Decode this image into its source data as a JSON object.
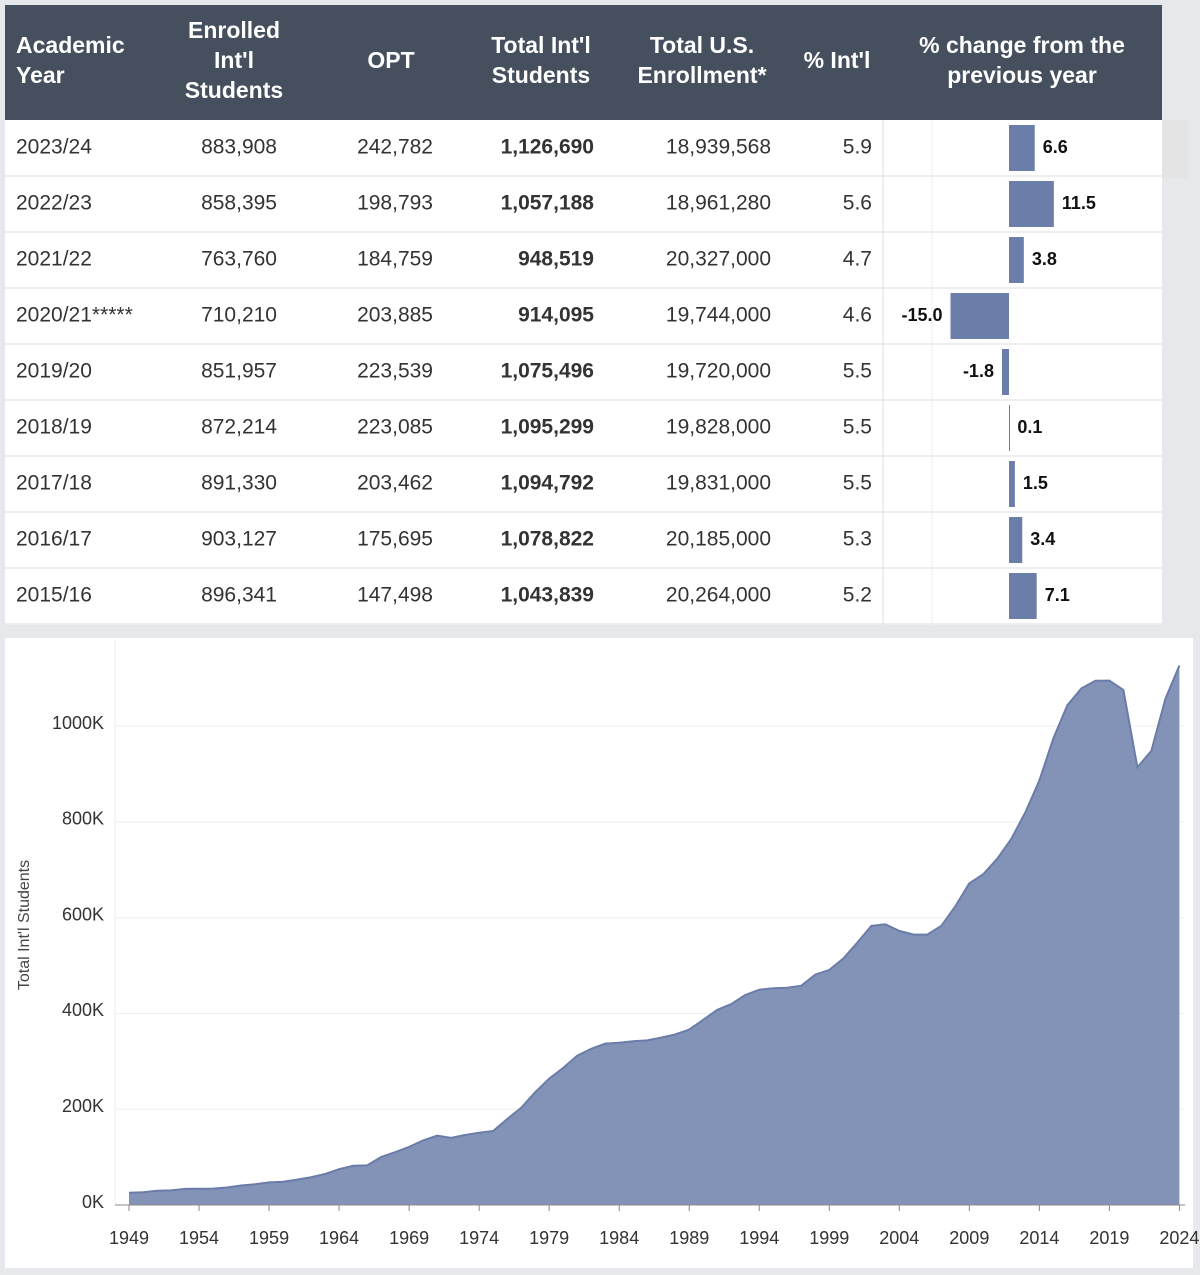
{
  "table": {
    "headers": [
      [
        "Academic",
        "Year"
      ],
      [
        "Enrolled",
        "Int'l",
        "Students"
      ],
      [
        "OPT"
      ],
      [
        "Total Int'l",
        "Students"
      ],
      [
        "Total U.S.",
        "Enrollment*"
      ],
      [
        "% Int'l"
      ],
      [
        "% change from the",
        "previous year"
      ]
    ],
    "rows": [
      [
        "2023/24",
        "883,908",
        "242,782",
        "1,126,690",
        "18,939,568",
        "5.9"
      ],
      [
        "2022/23",
        "858,395",
        "198,793",
        "1,057,188",
        "18,961,280",
        "5.6"
      ],
      [
        "2021/22",
        "763,760",
        "184,759",
        "948,519",
        "20,327,000",
        "4.7"
      ],
      [
        "2020/21*****",
        "710,210",
        "203,885",
        "914,095",
        "19,744,000",
        "4.6"
      ],
      [
        "2019/20",
        "851,957",
        "223,539",
        "1,075,496",
        "19,720,000",
        "5.5"
      ],
      [
        "2018/19",
        "872,214",
        "223,085",
        "1,095,299",
        "19,828,000",
        "5.5"
      ],
      [
        "2017/18",
        "891,330",
        "203,462",
        "1,094,792",
        "19,831,000",
        "5.5"
      ],
      [
        "2016/17",
        "903,127",
        "175,695",
        "1,078,822",
        "20,185,000",
        "5.3"
      ],
      [
        "2015/16",
        "896,341",
        "147,498",
        "1,043,839",
        "20,264,000",
        "5.2"
      ]
    ],
    "change": [
      6.6,
      11.5,
      3.8,
      -15.0,
      -1.8,
      0.1,
      1.5,
      3.4,
      7.1
    ],
    "change_labels": [
      "6.6",
      "11.5",
      "3.8",
      "-15.0",
      "-1.8",
      "0.1",
      "1.5",
      "3.4",
      "7.1"
    ],
    "color": "#6b7eaa"
  },
  "chart_data": {
    "type": "area",
    "y_label": "Total Int'l Students",
    "color": "#8393b8",
    "line_color": "#6a7ca8",
    "x": [
      1949,
      1950,
      1951,
      1952,
      1953,
      1954,
      1955,
      1956,
      1957,
      1958,
      1959,
      1960,
      1961,
      1962,
      1963,
      1964,
      1965,
      1966,
      1967,
      1968,
      1969,
      1970,
      1971,
      1972,
      1973,
      1974,
      1975,
      1976,
      1977,
      1978,
      1979,
      1980,
      1981,
      1982,
      1983,
      1984,
      1985,
      1986,
      1987,
      1988,
      1989,
      1990,
      1991,
      1992,
      1993,
      1994,
      1995,
      1996,
      1997,
      1998,
      1999,
      2000,
      2001,
      2002,
      2003,
      2004,
      2005,
      2006,
      2007,
      2008,
      2009,
      2010,
      2011,
      2012,
      2013,
      2014,
      2015,
      2016,
      2017,
      2018,
      2019,
      2020,
      2021,
      2022,
      2023,
      2024
    ],
    "values": [
      25464,
      26433,
      29813,
      30462,
      33675,
      33833,
      34232,
      36494,
      40666,
      43391,
      47245,
      48486,
      53107,
      58086,
      64705,
      74814,
      82045,
      82709,
      100262,
      110315,
      121362,
      134959,
      144708,
      140126,
      146097,
      151066,
      154580,
      179344,
      203068,
      235509,
      263938,
      286343,
      311882,
      326299,
      336985,
      338894,
      342113,
      343777,
      349609,
      356187,
      366354,
      386851,
      407529,
      419585,
      438618,
      449749,
      452635,
      453787,
      457984,
      481280,
      490933,
      514723,
      547867,
      582996,
      586323,
      572509,
      565039,
      564766,
      582984,
      623805,
      671616,
      690923,
      723277,
      764495,
      819644,
      886052,
      974926,
      1043839,
      1078822,
      1094792,
      1095299,
      1075496,
      914095,
      948519,
      1057188,
      1126690
    ],
    "xlim": [
      1948,
      2024.4
    ],
    "xticks": [
      1949,
      1954,
      1959,
      1964,
      1969,
      1974,
      1979,
      1984,
      1989,
      1994,
      1999,
      2004,
      2009,
      2014,
      2019,
      2024
    ],
    "ylim": [
      0,
      1180000
    ],
    "yticks": [
      {
        "value": 0,
        "label": "0K"
      },
      {
        "value": 200000,
        "label": "200K"
      },
      {
        "value": 400000,
        "label": "400K"
      },
      {
        "value": 600000,
        "label": "600K"
      },
      {
        "value": 800000,
        "label": "800K"
      },
      {
        "value": 1000000,
        "label": "1000K"
      }
    ],
    "grid": true
  }
}
